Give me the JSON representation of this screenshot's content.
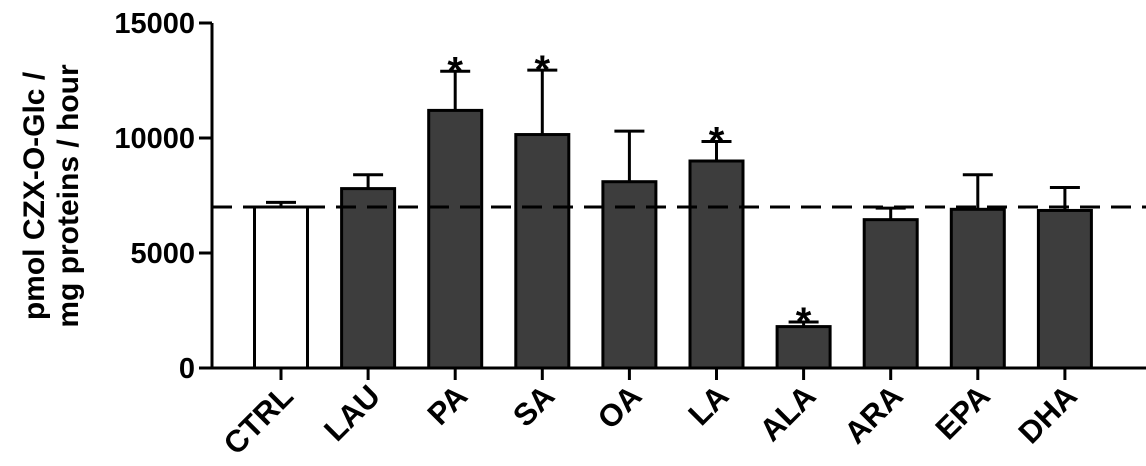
{
  "chart_data": {
    "type": "bar",
    "title": "",
    "xlabel": "",
    "ylabel_lines": [
      "pmol CZX-O-Glc /",
      "mg proteins / hour"
    ],
    "ylim": [
      0,
      15000
    ],
    "yticks": [
      0,
      5000,
      10000,
      15000
    ],
    "ytick_labels": [
      "0",
      "5000",
      "10000",
      "15000"
    ],
    "categories": [
      "CTRL",
      "LAU",
      "PA",
      "SA",
      "OA",
      "LA",
      "ALA",
      "ARA",
      "EPA",
      "DHA"
    ],
    "values": [
      7000,
      7800,
      11200,
      10150,
      8100,
      9000,
      1800,
      6450,
      6900,
      6850
    ],
    "error": [
      200,
      600,
      1700,
      2800,
      2200,
      850,
      200,
      500,
      1500,
      1000
    ],
    "significant": [
      false,
      false,
      true,
      true,
      false,
      true,
      true,
      false,
      false,
      false
    ],
    "significance_marker": "*",
    "reference_line": 7000,
    "colors": {
      "control": "#ffffff",
      "treatment": "#3d3d3d",
      "edge": "#000000"
    }
  }
}
